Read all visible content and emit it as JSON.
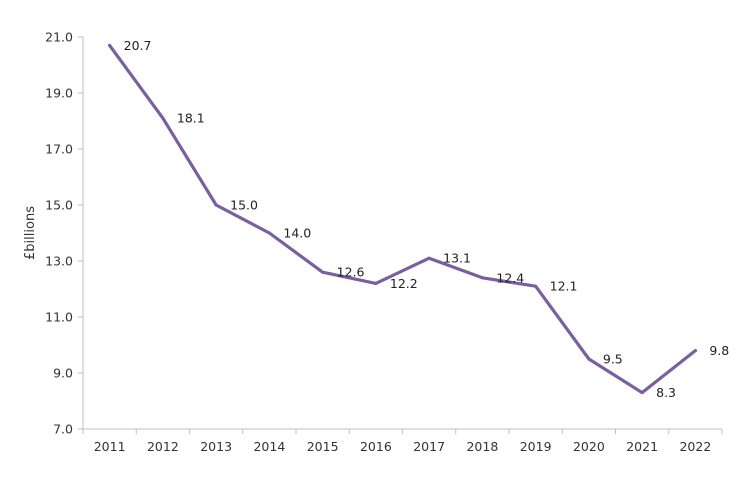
{
  "chart_data": {
    "type": "line",
    "title": "",
    "xlabel": "",
    "ylabel": "£billions",
    "ylim": [
      7.0,
      21.0
    ],
    "yticks": [
      "7.0",
      "9.0",
      "11.0",
      "13.0",
      "15.0",
      "17.0",
      "19.0",
      "21.0"
    ],
    "categories": [
      "2011",
      "2012",
      "2013",
      "2014",
      "2015",
      "2016",
      "2017",
      "2018",
      "2019",
      "2020",
      "2021",
      "2022"
    ],
    "series": [
      {
        "values": [
          20.7,
          18.1,
          15.0,
          14.0,
          12.6,
          12.2,
          13.1,
          12.4,
          12.1,
          9.5,
          8.3,
          9.8
        ],
        "data_labels": [
          "20.7",
          "18.1",
          "15.0",
          "14.0",
          "12.6",
          "12.2",
          "13.1",
          "12.4",
          "12.1",
          "9.5",
          "8.3",
          "9.8"
        ],
        "color": "#7a5fa0"
      }
    ],
    "grid": false,
    "legend": "none",
    "axis_color": "#bfbfbf"
  }
}
